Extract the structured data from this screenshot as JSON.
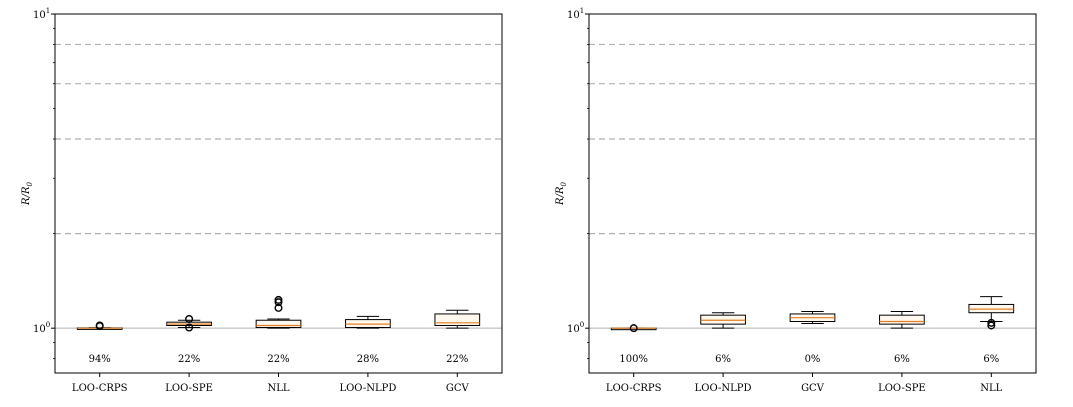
{
  "chart_data": [
    {
      "type": "box",
      "ylabel": "R/R0",
      "yscale": "log",
      "ylim": [
        0.72,
        10
      ],
      "yticks": [
        {
          "value": 1,
          "label": "10^0"
        },
        {
          "value": 10,
          "label": "10^1"
        }
      ],
      "reference_lines": {
        "solid": [
          1
        ],
        "dashed": [
          2,
          4,
          6,
          8
        ]
      },
      "categories": [
        "LOO-CRPS",
        "LOO-SPE",
        "NLL",
        "LOO-NLPD",
        "GCV"
      ],
      "percent_labels": [
        "94%",
        "22%",
        "22%",
        "28%",
        "22%"
      ],
      "boxes": [
        {
          "whisker_low": 1.0,
          "q1": 1.0,
          "median": 1.0,
          "q3": 1.002,
          "whisker_high": 1.003,
          "outliers": [
            1.015,
            1.02
          ]
        },
        {
          "whisker_low": 1.005,
          "q1": 1.02,
          "median": 1.03,
          "q3": 1.045,
          "whisker_high": 1.06,
          "outliers": [
            1.005,
            1.07
          ]
        },
        {
          "whisker_low": 1.0,
          "q1": 1.005,
          "median": 1.02,
          "q3": 1.06,
          "whisker_high": 1.07,
          "outliers": [
            1.16,
            1.21,
            1.23
          ]
        },
        {
          "whisker_low": 1.0,
          "q1": 1.005,
          "median": 1.03,
          "q3": 1.065,
          "whisker_high": 1.09,
          "outliers": []
        },
        {
          "whisker_low": 1.0,
          "q1": 1.02,
          "median": 1.04,
          "q3": 1.11,
          "whisker_high": 1.14,
          "outliers": []
        }
      ]
    },
    {
      "type": "box",
      "ylabel": "R/R0",
      "yscale": "log",
      "ylim": [
        0.72,
        10
      ],
      "yticks": [
        {
          "value": 1,
          "label": "10^0"
        },
        {
          "value": 10,
          "label": "10^1"
        }
      ],
      "reference_lines": {
        "solid": [
          1
        ],
        "dashed": [
          2,
          4,
          6,
          8
        ]
      },
      "categories": [
        "LOO-CRPS",
        "LOO-NLPD",
        "GCV",
        "LOO-SPE",
        "NLL"
      ],
      "percent_labels": [
        "100%",
        "6%",
        "0%",
        "6%",
        "6%"
      ],
      "boxes": [
        {
          "whisker_low": 1.0,
          "q1": 1.0,
          "median": 1.0,
          "q3": 1.0,
          "whisker_high": 1.0,
          "outliers": [
            1.0
          ]
        },
        {
          "whisker_low": 1.0,
          "q1": 1.03,
          "median": 1.06,
          "q3": 1.1,
          "whisker_high": 1.12,
          "outliers": []
        },
        {
          "whisker_low": 1.035,
          "q1": 1.05,
          "median": 1.08,
          "q3": 1.11,
          "whisker_high": 1.13,
          "outliers": []
        },
        {
          "whisker_low": 1.0,
          "q1": 1.03,
          "median": 1.05,
          "q3": 1.1,
          "whisker_high": 1.13,
          "outliers": []
        },
        {
          "whisker_low": 1.05,
          "q1": 1.12,
          "median": 1.15,
          "q3": 1.19,
          "whisker_high": 1.26,
          "outliers": [
            1.02,
            1.04
          ]
        }
      ]
    }
  ],
  "colors": {
    "box": "#fff8ee",
    "median": "#e67e22",
    "dashed": "#b0b0b0",
    "solid": "#b0b0b0",
    "axis": "#000000"
  }
}
